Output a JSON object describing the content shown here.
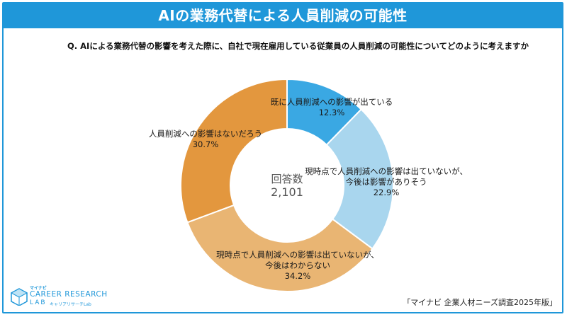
{
  "header": {
    "title": "AIの業務代替による人員削減の可能性"
  },
  "question": "Q. AIによる業務代替の影響を考えた際に、自社で現在雇用している従業員の人員削減の可能性についてどのように考えますか",
  "chart_data": {
    "type": "donut",
    "center_label": "回答数",
    "center_value": "2,101",
    "slices": [
      {
        "label_lines": [
          "既に人員削減への影響が出ている"
        ],
        "value": 12.3,
        "value_text": "12.3%",
        "color": "#3aa8e3"
      },
      {
        "label_lines": [
          "現時点で人員削減への影響は出ていないが、",
          "今後は影響がありそう"
        ],
        "value": 22.9,
        "value_text": "22.9%",
        "color": "#a9d6ee"
      },
      {
        "label_lines": [
          "現時点で人員削減への影響は出ていないが、",
          "今後はわからない"
        ],
        "value": 34.2,
        "value_text": "34.2%",
        "color": "#e9b573"
      },
      {
        "label_lines": [
          "人員削減への影響はないだろう"
        ],
        "value": 30.7,
        "value_text": "30.7%",
        "color": "#e3973e"
      }
    ]
  },
  "logo": {
    "small": "マイナビ",
    "main": "CAREER RESEARCH",
    "lab": "LAB",
    "sub": "キャリアリサーチLab"
  },
  "source": "「マイナビ 企業人材ニーズ調査2025年版」"
}
